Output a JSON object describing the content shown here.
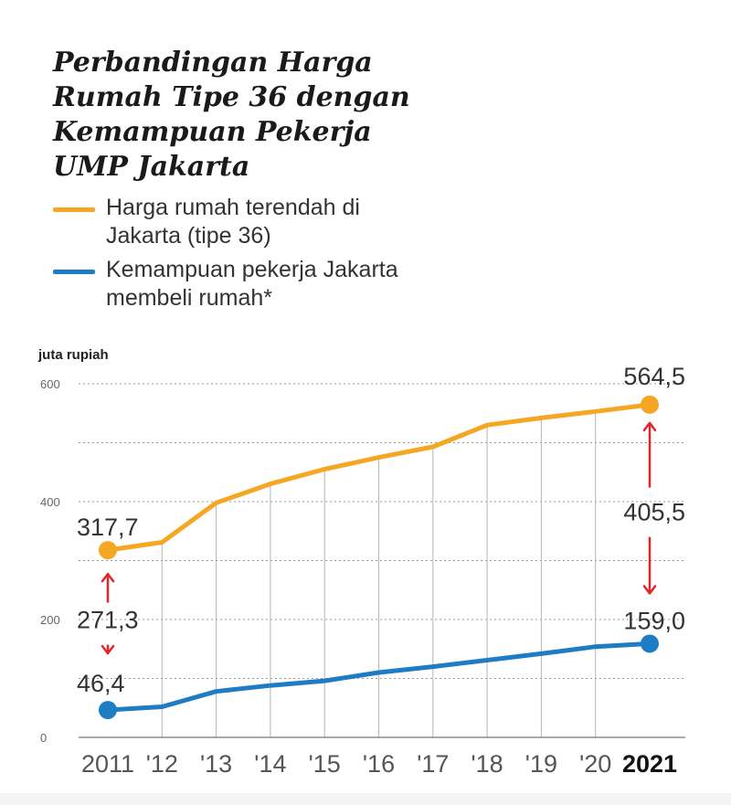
{
  "title": "Perbandingan Harga Rumah Tipe 36 dengan Kemampuan Pekerja UMP Jakarta",
  "colors": {
    "orange": "#F5A623",
    "blue": "#1E7CC4",
    "arrow": "#E0262B",
    "grid": "#9a9a9a"
  },
  "chart_data": {
    "type": "line",
    "title": "Perbandingan Harga Rumah Tipe 36 dengan Kemampuan Pekerja UMP Jakarta",
    "ylabel": "juta rupiah",
    "ylim": [
      0,
      600
    ],
    "yticks": [
      "0",
      "200",
      "400",
      "600"
    ],
    "categories": [
      "2011",
      "'12",
      "'13",
      "'14",
      "'15",
      "'16",
      "'17",
      "'18",
      "'19",
      "'20",
      "2021"
    ],
    "series": [
      {
        "name": "Harga rumah terendah di Jakarta (tipe 36)",
        "color": "#F5A623",
        "values": [
          317.7,
          331,
          398,
          430,
          455,
          475,
          493,
          530,
          542,
          553,
          564.5
        ]
      },
      {
        "name": "Kemampuan pekerja Jakarta membeli rumah*",
        "color": "#1E7CC4",
        "values": [
          46.4,
          52,
          78,
          88,
          96,
          110,
          120,
          131,
          142,
          154,
          159.0
        ]
      }
    ],
    "annotations": {
      "start_top": "317,7",
      "start_bottom": "46,4",
      "start_gap": "271,3",
      "end_top": "564,5",
      "end_bottom": "159,0",
      "end_gap": "405,5"
    },
    "grid": true,
    "legend": "top-left"
  }
}
